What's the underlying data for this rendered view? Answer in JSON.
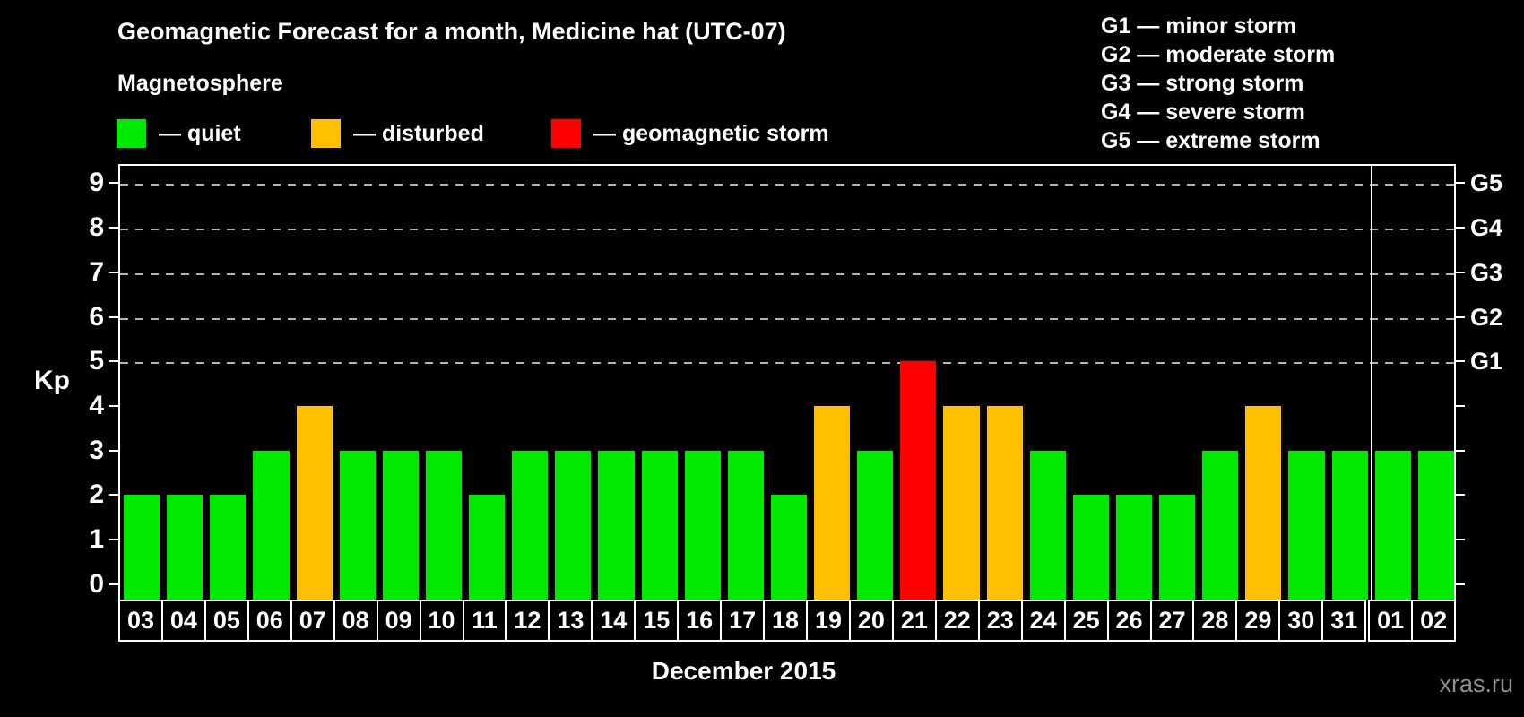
{
  "title": "Geomagnetic Forecast for a month, Medicine hat (UTC-07)",
  "magnetosphere_legend": {
    "heading": "Magnetosphere",
    "items": [
      {
        "id": "quiet",
        "swatch_color": "#00ea00",
        "label": "— quiet"
      },
      {
        "id": "disturbed",
        "swatch_color": "#ffc000",
        "label": "— disturbed"
      },
      {
        "id": "storm",
        "swatch_color": "#ff0000",
        "label": "— geomagnetic storm"
      }
    ]
  },
  "g_scale_legend": {
    "lines": [
      "G1 — minor storm",
      "G2 — moderate storm",
      "G3 — strong storm",
      "G4 — severe storm",
      "G5 — extreme storm"
    ]
  },
  "watermark": "xras.ru",
  "chart_data": {
    "type": "bar",
    "title": "Geomagnetic Forecast for a month, Medicine hat (UTC-07)",
    "xlabel": "December 2015",
    "ylabel": "Kp",
    "ylim": [
      0,
      9.4
    ],
    "y_ticks": [
      "0",
      "1",
      "2",
      "3",
      "4",
      "5",
      "6",
      "7",
      "8",
      "9"
    ],
    "gridlines_at": [
      5,
      6,
      7,
      8,
      9
    ],
    "grid_style": "dashed horizontal gray lines at Kp 5-9 only",
    "right_axis": {
      "ticks_at": [
        0,
        1,
        2,
        3,
        4,
        5,
        6,
        7,
        8,
        9
      ],
      "labels": [
        {
          "label": "G1",
          "kp": 5
        },
        {
          "label": "G2",
          "kp": 6
        },
        {
          "label": "G3",
          "kp": 7
        },
        {
          "label": "G4",
          "kp": 8
        },
        {
          "label": "G5",
          "kp": 9
        }
      ]
    },
    "categories": [
      "03",
      "04",
      "05",
      "06",
      "07",
      "08",
      "09",
      "10",
      "11",
      "12",
      "13",
      "14",
      "15",
      "16",
      "17",
      "18",
      "19",
      "20",
      "21",
      "22",
      "23",
      "24",
      "25",
      "26",
      "27",
      "28",
      "29",
      "30",
      "31",
      "01",
      "02"
    ],
    "values": [
      2,
      2,
      2,
      3,
      4,
      3,
      3,
      3,
      2,
      3,
      3,
      3,
      3,
      3,
      3,
      2,
      4,
      3,
      5,
      4,
      4,
      3,
      2,
      2,
      2,
      3,
      4,
      3,
      3,
      3,
      3
    ],
    "levels": [
      "quiet",
      "quiet",
      "quiet",
      "quiet",
      "disturbed",
      "quiet",
      "quiet",
      "quiet",
      "quiet",
      "quiet",
      "quiet",
      "quiet",
      "quiet",
      "quiet",
      "quiet",
      "quiet",
      "disturbed",
      "quiet",
      "storm",
      "disturbed",
      "disturbed",
      "quiet",
      "quiet",
      "quiet",
      "quiet",
      "quiet",
      "disturbed",
      "quiet",
      "quiet",
      "quiet",
      "quiet"
    ],
    "colors": {
      "quiet": "#00ea00",
      "disturbed": "#ffc000",
      "storm": "#ff0000"
    },
    "month_boundary_before_index": 29,
    "background": "#000000"
  }
}
